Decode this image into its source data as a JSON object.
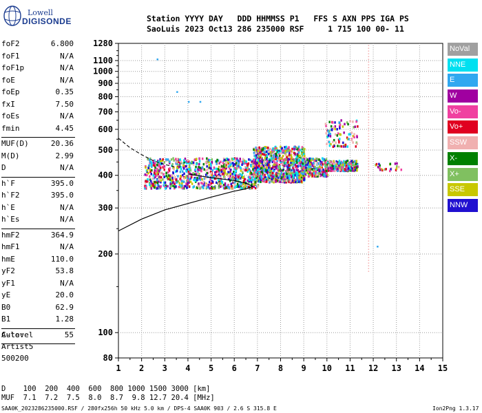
{
  "logo": {
    "line1": "Lowell",
    "line2": "DIGISONDE"
  },
  "header": {
    "row1": "Station YYYY DAY   DDD HHMMSS P1   FFS S AXN PPS IGA PS",
    "row2": "SaoLuis 2023 Oct13 286 235000 RSF     1 715 100 00- 11"
  },
  "params_groups": [
    [
      {
        "name": "foF2",
        "value": "6.800"
      },
      {
        "name": "foF1",
        "value": "N/A"
      },
      {
        "name": "foF1p",
        "value": "N/A"
      },
      {
        "name": "foE",
        "value": "N/A"
      },
      {
        "name": "foEp",
        "value": "0.35"
      },
      {
        "name": "fxI",
        "value": "7.50"
      },
      {
        "name": "foEs",
        "value": "N/A"
      },
      {
        "name": "fmin",
        "value": "4.45"
      }
    ],
    [
      {
        "name": "MUF(D)",
        "value": "20.36"
      },
      {
        "name": "M(D)",
        "value": "2.99"
      },
      {
        "name": "D",
        "value": "N/A"
      }
    ],
    [
      {
        "name": "h`F",
        "value": "395.0"
      },
      {
        "name": "h`F2",
        "value": "395.0"
      },
      {
        "name": "h`E",
        "value": "N/A"
      },
      {
        "name": "h`Es",
        "value": "N/A"
      }
    ],
    [
      {
        "name": "hmF2",
        "value": "364.9"
      },
      {
        "name": "hmF1",
        "value": "N/A"
      },
      {
        "name": "hmE",
        "value": "110.0"
      },
      {
        "name": "yF2",
        "value": "53.8"
      },
      {
        "name": "yF1",
        "value": "N/A"
      },
      {
        "name": "yE",
        "value": "20.0"
      },
      {
        "name": "B0",
        "value": "62.9"
      },
      {
        "name": "B1",
        "value": "1.28"
      }
    ],
    [
      {
        "name": "C-level",
        "value": "55"
      }
    ]
  ],
  "auto": {
    "line1": "Auto:",
    "line2": "Artist5",
    "line3": "500200"
  },
  "legend": [
    {
      "label": "NoVal",
      "color": "#a0a0a0"
    },
    {
      "label": "NNE",
      "color": "#00e0f0"
    },
    {
      "label": "E",
      "color": "#30a8f0"
    },
    {
      "label": "W",
      "color": "#a000a0"
    },
    {
      "label": "Vo-",
      "color": "#f040a0"
    },
    {
      "label": "Vo+",
      "color": "#e00020"
    },
    {
      "label": "SSW",
      "color": "#f0b0b0"
    },
    {
      "label": "X-",
      "color": "#008000"
    },
    {
      "label": "X+",
      "color": "#80c060"
    },
    {
      "label": "SSE",
      "color": "#c8c800"
    },
    {
      "label": "NNW",
      "color": "#2010d0"
    }
  ],
  "footer": {
    "row_d": "D    100  200  400  600  800 1000 1500 3000 [km]",
    "row_muf": "MUF  7.1  7.2  7.5  8.0  8.7  9.8 12.7 20.4 [MHz]",
    "file_info": "SAA0K_2023286235000.RSF / 280fx256h 50 kHz 5.0 km / DPS-4 SAA0K 903 / 2.6 S 315.8 E",
    "version": "Ion2Png 1.3.17"
  },
  "chart_data": {
    "type": "scatter",
    "title": "",
    "xlabel": "",
    "ylabel": "",
    "xlim": [
      1,
      15
    ],
    "ylim": [
      80,
      1280
    ],
    "y_scale": "log",
    "grid": true,
    "x_ticks": [
      "1",
      "2",
      "3",
      "4",
      "5",
      "6",
      "7",
      "8",
      "9",
      "10",
      "11",
      "12",
      "13",
      "14",
      "15"
    ],
    "y_ticks": [
      "80",
      "100",
      "200",
      "300",
      "400",
      "500",
      "600",
      "700",
      "800",
      "900",
      "1000",
      "1100",
      "1280"
    ],
    "clusters": [
      {
        "x_range": [
          2.1,
          7.0
        ],
        "y_range": [
          360,
          470
        ],
        "density": "high"
      },
      {
        "x_range": [
          6.8,
          9.0
        ],
        "y_range": [
          380,
          520
        ],
        "density": "high"
      },
      {
        "x_range": [
          8.9,
          10.0
        ],
        "y_range": [
          400,
          470
        ],
        "density": "medium"
      },
      {
        "x_range": [
          9.9,
          11.3
        ],
        "y_range": [
          420,
          460
        ],
        "density": "medium"
      },
      {
        "x_range": [
          9.9,
          11.3
        ],
        "y_range": [
          520,
          660
        ],
        "density": "low"
      },
      {
        "x_range": [
          12.0,
          13.2
        ],
        "y_range": [
          420,
          450
        ],
        "density": "sparse"
      }
    ],
    "isolated_points": [
      {
        "x": 2.65,
        "y": 1120,
        "color": "#30a8f0"
      },
      {
        "x": 3.5,
        "y": 840,
        "color": "#30a8f0"
      },
      {
        "x": 4.0,
        "y": 770,
        "color": "#30a8f0"
      },
      {
        "x": 4.5,
        "y": 770,
        "color": "#30a8f0"
      },
      {
        "x": 12.15,
        "y": 215,
        "color": "#30a8f0"
      }
    ],
    "vertical_dotted_line": {
      "x": 11.8,
      "y_range": [
        170,
        1260
      ],
      "color": "#f08080"
    },
    "profile_line": [
      [
        1.0,
        245
      ],
      [
        2.0,
        272
      ],
      [
        3.0,
        295
      ],
      [
        4.0,
        312
      ],
      [
        5.0,
        330
      ],
      [
        6.0,
        348
      ],
      [
        6.5,
        355
      ],
      [
        6.8,
        363
      ],
      [
        6.5,
        373
      ],
      [
        6.0,
        382
      ],
      [
        5.0,
        392
      ],
      [
        4.5,
        398
      ],
      [
        4.0,
        405
      ]
    ],
    "profile_dashed": [
      [
        1.0,
        555
      ],
      [
        1.5,
        510
      ],
      [
        2.0,
        480
      ],
      [
        2.5,
        455
      ],
      [
        3.0,
        440
      ],
      [
        3.4,
        432
      ]
    ]
  }
}
